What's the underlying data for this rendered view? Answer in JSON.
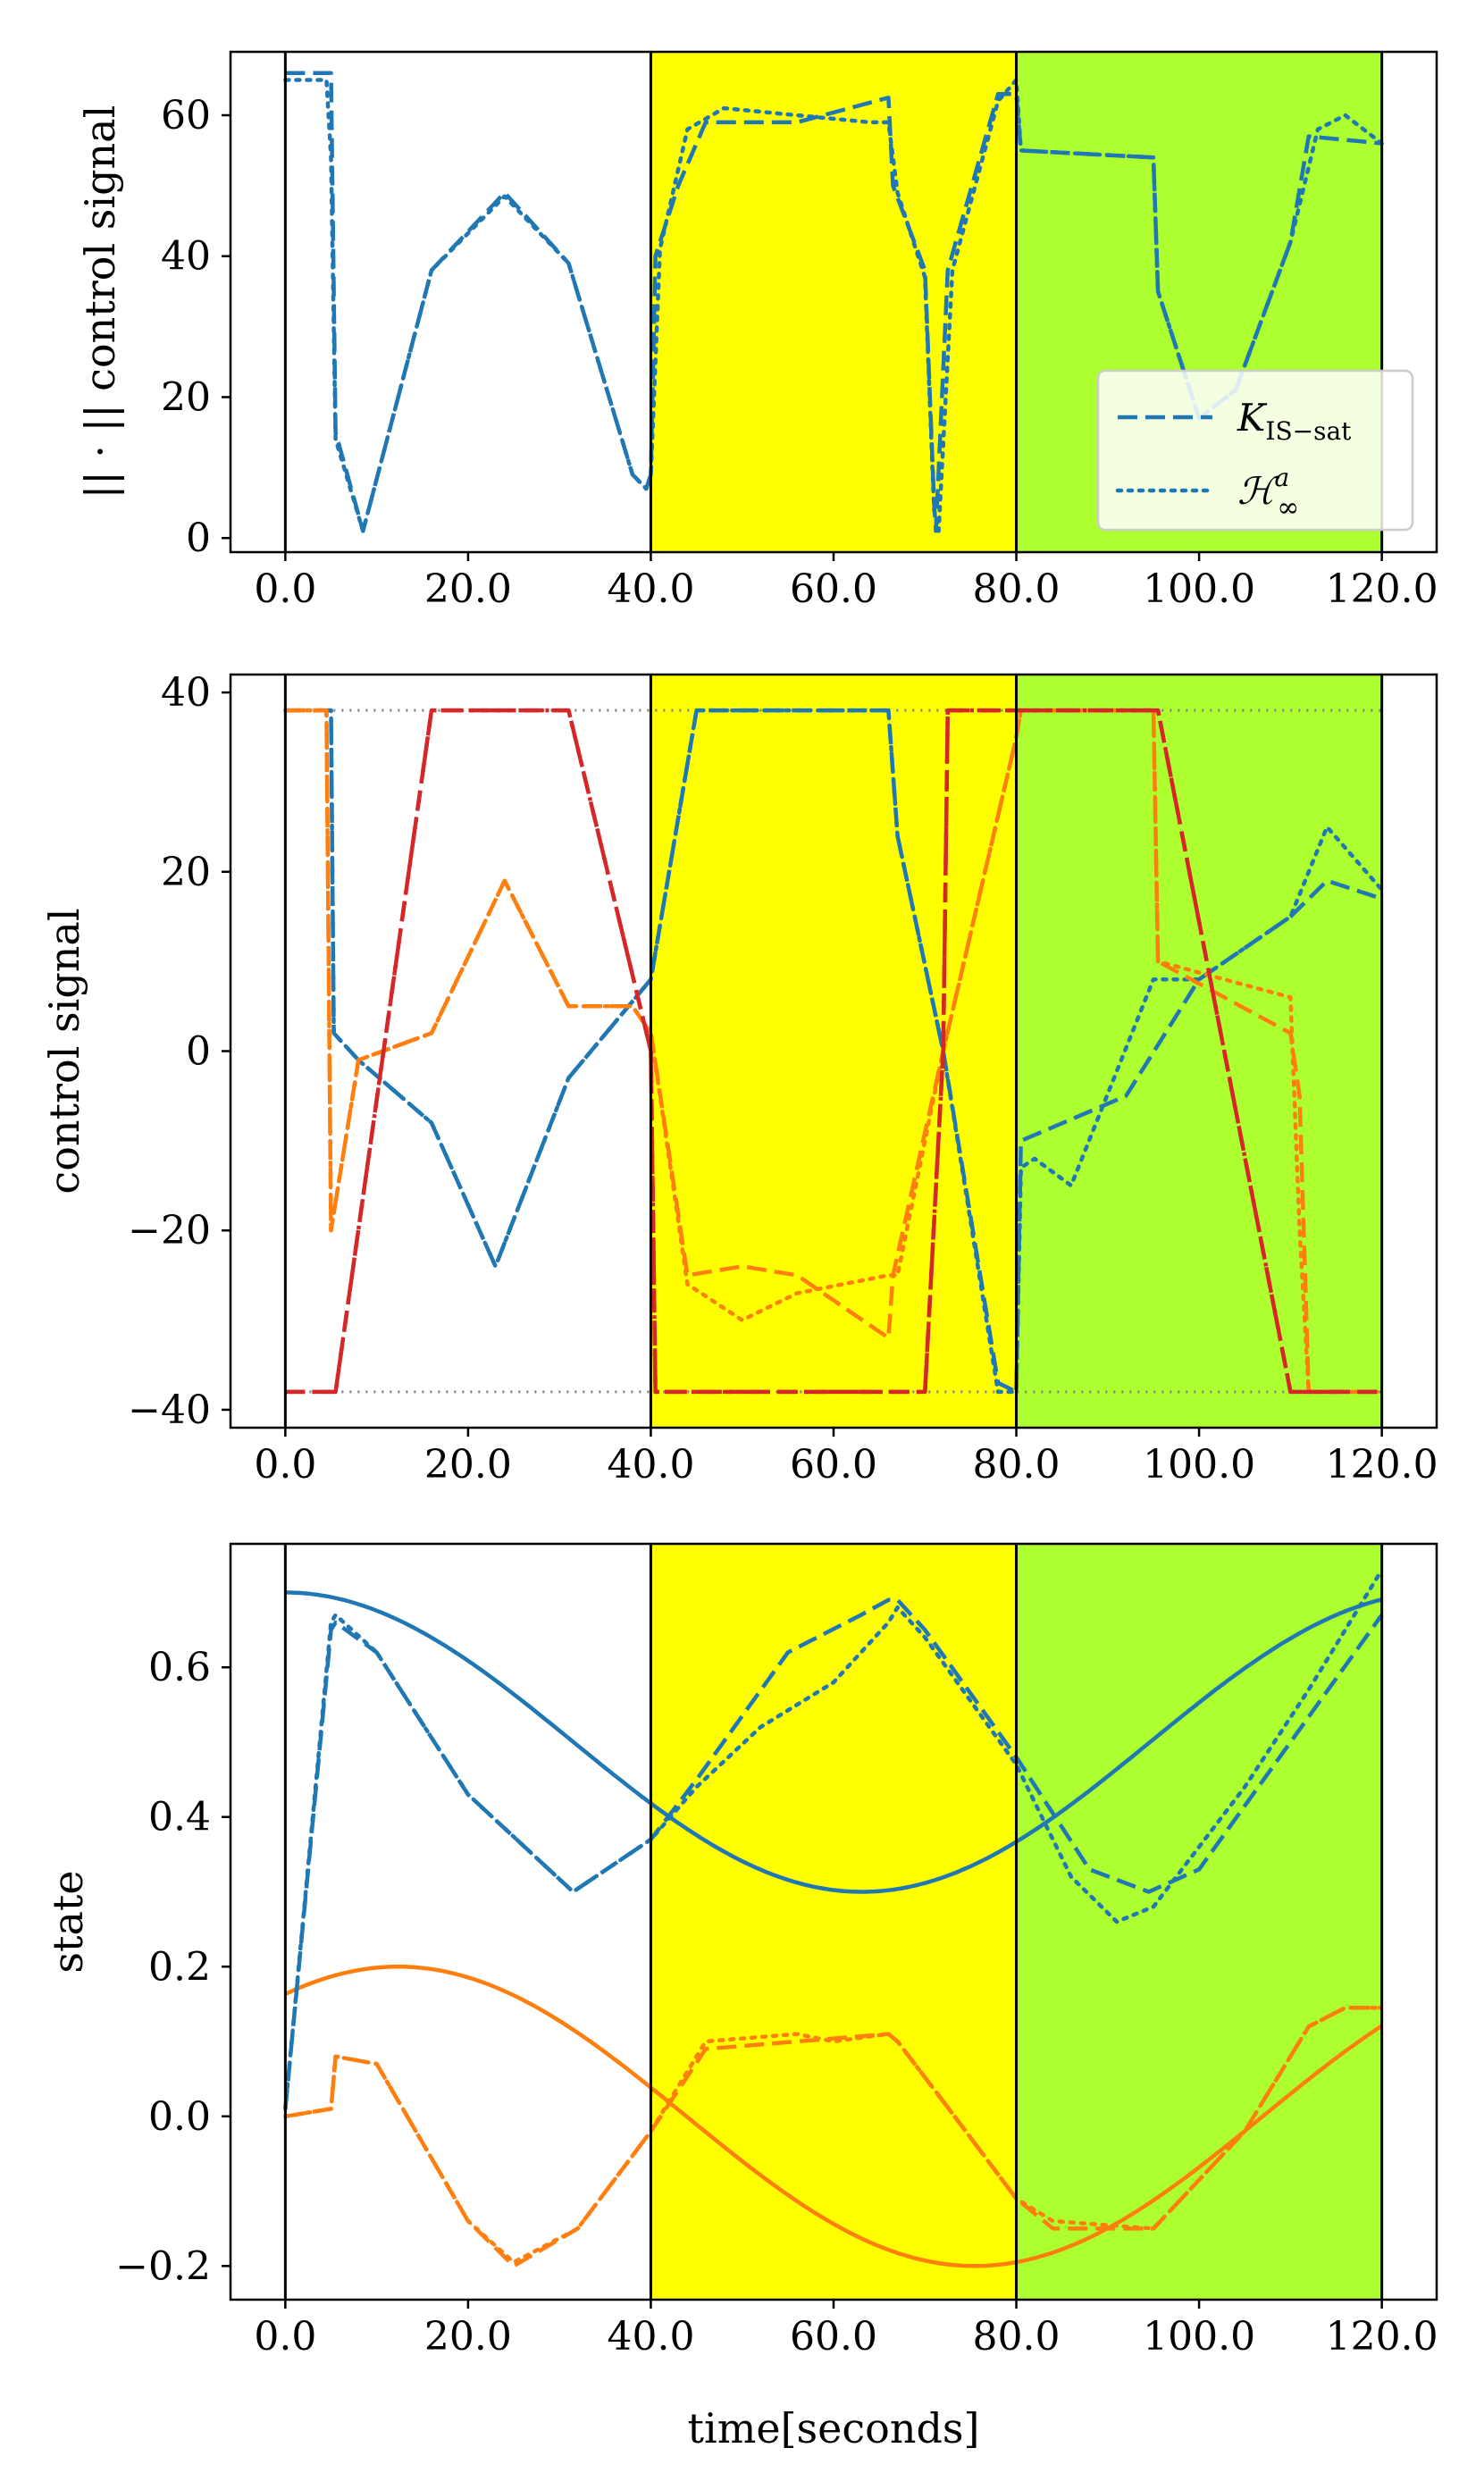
{
  "colors": {
    "blue": "#1f77b4",
    "orange": "#ff7f0e",
    "red": "#d62728",
    "gray": "#808080",
    "yellow_region": "#ffff00",
    "green_region": "#adff2f"
  },
  "figure": {
    "xlabel": "time[seconds]",
    "xticks": [
      "0.0",
      "20.0",
      "40.0",
      "60.0",
      "80.0",
      "100.0",
      "120.0"
    ],
    "xtick_values": [
      0,
      20,
      40,
      60,
      80,
      100,
      120
    ],
    "xlim": [
      -6,
      126
    ],
    "regions": [
      {
        "from": 40,
        "to": 80,
        "color": "#ffff00"
      },
      {
        "from": 80,
        "to": 120,
        "color": "#adff2f"
      }
    ],
    "vlines": [
      0,
      40,
      80,
      120
    ]
  },
  "chart_data": [
    {
      "type": "line",
      "title": "",
      "ylabel": "|| · || control signal",
      "ylim": [
        -2,
        69
      ],
      "yticks": [
        0,
        20,
        40,
        60
      ],
      "ytick_labels": [
        "0",
        "20",
        "40",
        "60"
      ],
      "legend": {
        "position": "lower-right",
        "entries": [
          {
            "label": "K_IS−sat",
            "label_main": "K",
            "label_sub": "IS−sat",
            "style": "dashed",
            "color": "#1f77b4"
          },
          {
            "label": "H∞^a",
            "label_main": "ℋ",
            "label_sub": "∞",
            "label_sup": "a",
            "style": "dotted",
            "color": "#1f77b4"
          }
        ]
      },
      "series": [
        {
          "name": "K_IS-sat",
          "style": "dashed",
          "color": "#1f77b4",
          "x": [
            0,
            5,
            5.5,
            8.5,
            16,
            24,
            31,
            38,
            39.5,
            40,
            40.5,
            43,
            46,
            56,
            66,
            66.5,
            70,
            71,
            71.2,
            72.5,
            78,
            80,
            80.5,
            95,
            95.5,
            100,
            104,
            110,
            112,
            120
          ],
          "y": [
            66,
            66,
            15,
            1,
            38,
            49,
            39,
            9,
            7,
            9,
            40,
            50,
            59,
            59,
            62.5,
            50,
            38,
            5,
            1,
            38,
            63,
            63,
            55,
            54,
            35,
            17,
            21,
            42,
            57,
            56
          ]
        },
        {
          "name": "H_inf^a",
          "style": "dotted",
          "color": "#1f77b4",
          "x": [
            0,
            4.5,
            5,
            5.5,
            8.5,
            16,
            24,
            31,
            38,
            39.5,
            40,
            41,
            44,
            48,
            56,
            64,
            66,
            67,
            70,
            71,
            71.5,
            73,
            78,
            80,
            80.5,
            95,
            95.5,
            100,
            104,
            110,
            113,
            116,
            120
          ],
          "y": [
            65,
            65,
            54,
            14,
            1,
            38,
            48.5,
            39,
            9,
            7,
            9,
            41,
            58,
            61,
            60,
            59,
            59,
            49,
            37,
            4,
            1,
            38,
            62,
            65,
            55,
            54,
            35,
            17,
            21,
            42,
            58,
            60,
            56
          ]
        }
      ]
    },
    {
      "type": "line",
      "title": "",
      "ylabel": "control signal",
      "ylim": [
        -42,
        42
      ],
      "yticks": [
        -40,
        -20,
        0,
        20,
        40
      ],
      "ytick_labels": [
        "−40",
        "−20",
        "0",
        "20",
        "40"
      ],
      "saturation_lines": [
        38,
        -38
      ],
      "series": [
        {
          "name": "u1 K_IS-sat",
          "style": "dashed",
          "color": "#1f77b4",
          "x": [
            0,
            5,
            5.3,
            8,
            16,
            23,
            31,
            40,
            45,
            66,
            67,
            72,
            78,
            80,
            80.5,
            92,
            100,
            110,
            114,
            120
          ],
          "y": [
            38,
            38,
            2,
            -1,
            -8,
            -24,
            -3,
            8,
            38,
            38,
            24,
            0,
            -37,
            -38,
            -10,
            -5,
            8,
            15,
            19,
            17
          ]
        },
        {
          "name": "u1 H_inf^a",
          "style": "dotted",
          "color": "#1f77b4",
          "x": [
            0,
            5,
            5.3,
            8,
            16,
            23,
            31,
            40,
            45,
            66,
            67,
            72,
            78,
            80,
            80.5,
            82,
            86,
            95,
            100,
            110,
            114,
            120
          ],
          "y": [
            38,
            38,
            2,
            -1,
            -8,
            -24,
            -3,
            8,
            38,
            38,
            24,
            0,
            -38,
            -38,
            -13,
            -12,
            -15,
            8,
            8,
            15,
            25,
            18
          ]
        },
        {
          "name": "u2 K_IS-sat",
          "style": "dashed",
          "color": "#ff7f0e",
          "x": [
            0,
            4.5,
            5,
            8,
            16,
            24,
            31,
            38,
            40,
            44,
            50,
            56,
            66,
            66.5,
            72,
            80,
            80.5,
            95,
            95.5,
            110,
            111,
            112,
            120
          ],
          "y": [
            38,
            38,
            -20,
            -1,
            2,
            19,
            5,
            5,
            2,
            -25,
            -24,
            -25,
            -32,
            -25,
            0,
            35,
            38,
            38,
            10,
            2,
            -5,
            -38,
            -38
          ]
        },
        {
          "name": "u2 H_inf^a",
          "style": "dotted",
          "color": "#ff7f0e",
          "x": [
            0,
            4.5,
            5,
            8,
            16,
            24,
            31,
            38,
            40,
            44,
            50,
            56,
            66,
            67,
            72,
            80,
            80.5,
            95,
            95.5,
            110,
            111,
            112,
            120
          ],
          "y": [
            38,
            38,
            -20,
            -1,
            2,
            19,
            5,
            5,
            2,
            -26,
            -30,
            -27,
            -25,
            -25,
            0,
            35,
            38,
            38,
            10,
            6,
            -20,
            -38,
            -38
          ]
        },
        {
          "name": "u3 K_IS-sat",
          "style": "dashdot",
          "color": "#d62728",
          "x": [
            0,
            5,
            5.5,
            16,
            31,
            40,
            40.5,
            70,
            72,
            72.5,
            95,
            95.5,
            110,
            112,
            120
          ],
          "y": [
            -38,
            -38,
            -38,
            38,
            38,
            0,
            -38,
            -38,
            0,
            38,
            38,
            38,
            -38,
            -38,
            -38
          ]
        },
        {
          "name": "u3 H_inf^a",
          "style": "dashed",
          "color": "#d62728",
          "x": [
            0,
            5,
            5.5,
            16,
            31,
            40,
            40.5,
            70,
            72,
            72.5,
            95,
            95.5,
            110,
            112,
            120
          ],
          "y": [
            -38,
            -38,
            -38,
            38,
            38,
            0,
            -38,
            -38,
            0,
            38,
            38,
            38,
            -38,
            -38,
            -38
          ]
        }
      ]
    },
    {
      "type": "line",
      "title": "",
      "ylabel": "state",
      "ylim": [
        -0.245,
        0.765
      ],
      "yticks": [
        -0.2,
        0.0,
        0.2,
        0.4,
        0.6
      ],
      "ytick_labels": [
        "−0.2",
        "0.0",
        "0.2",
        "0.4",
        "0.6"
      ],
      "series": [
        {
          "name": "x1 reference",
          "style": "solid",
          "color": "#1f77b4",
          "func": "sin",
          "amp": 0.2,
          "offset": 0.5,
          "omega": 0.0498,
          "phase": 1.5708
        },
        {
          "name": "x2 reference",
          "style": "solid",
          "color": "#ff7f0e",
          "func": "sin",
          "amp": 0.2,
          "offset": 0.0,
          "omega": 0.0498,
          "phase": 0.956
        },
        {
          "name": "x1 K_IS-sat",
          "style": "dashed",
          "color": "#1f77b4",
          "x": [
            0,
            5,
            5.5,
            10,
            20,
            31.5,
            40,
            45,
            55,
            63,
            66,
            67,
            70,
            80,
            88,
            94.5,
            100,
            110,
            120
          ],
          "y": [
            0.01,
            0.65,
            0.66,
            0.62,
            0.43,
            0.3,
            0.37,
            0.45,
            0.62,
            0.67,
            0.69,
            0.69,
            0.65,
            0.48,
            0.33,
            0.3,
            0.33,
            0.5,
            0.67
          ]
        },
        {
          "name": "x1 H_inf^a",
          "style": "dotted",
          "color": "#1f77b4",
          "x": [
            0,
            5,
            5.5,
            10,
            20,
            31.5,
            40,
            45,
            52,
            60,
            66,
            67,
            70,
            80,
            86,
            91,
            95,
            105,
            112,
            120
          ],
          "y": [
            0.01,
            0.66,
            0.67,
            0.62,
            0.43,
            0.3,
            0.37,
            0.44,
            0.52,
            0.58,
            0.66,
            0.68,
            0.64,
            0.47,
            0.32,
            0.26,
            0.28,
            0.44,
            0.57,
            0.73
          ]
        },
        {
          "name": "x2 K_IS-sat",
          "style": "dashed",
          "color": "#ff7f0e",
          "x": [
            0,
            5,
            5.5,
            10,
            20,
            25,
            32,
            40,
            46,
            56,
            66,
            67,
            72,
            80,
            84,
            95,
            105,
            112,
            116,
            120
          ],
          "y": [
            0.0,
            0.01,
            0.08,
            0.07,
            -0.14,
            -0.2,
            -0.15,
            -0.02,
            0.09,
            0.1,
            0.11,
            0.1,
            0.02,
            -0.11,
            -0.15,
            -0.15,
            -0.02,
            0.12,
            0.145,
            0.145
          ]
        },
        {
          "name": "x2 H_inf^a",
          "style": "dotted",
          "color": "#ff7f0e",
          "x": [
            0,
            5,
            5.5,
            10,
            20,
            25,
            32,
            40,
            46,
            56,
            60,
            66,
            67,
            72,
            80,
            84,
            95,
            105,
            112,
            116,
            120
          ],
          "y": [
            0.0,
            0.01,
            0.08,
            0.07,
            -0.14,
            -0.195,
            -0.15,
            -0.02,
            0.1,
            0.11,
            0.1,
            0.11,
            0.1,
            0.02,
            -0.11,
            -0.14,
            -0.15,
            -0.02,
            0.12,
            0.145,
            0.145
          ]
        }
      ]
    }
  ]
}
